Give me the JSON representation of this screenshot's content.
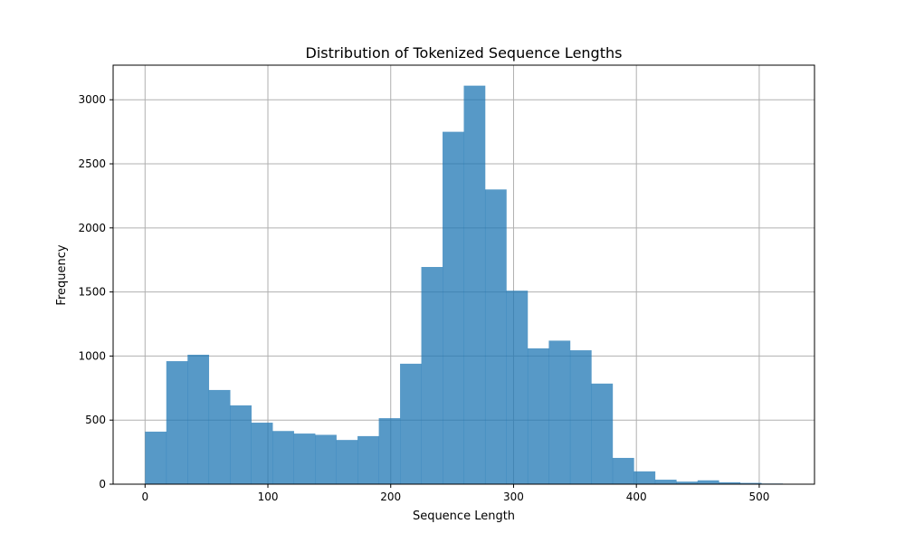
{
  "chart_data": {
    "type": "bar",
    "title": "Distribution of Tokenized Sequence Lengths",
    "xlabel": "Sequence Length",
    "ylabel": "Frequency",
    "xlim": [
      -26,
      545
    ],
    "ylim": [
      0,
      3270
    ],
    "xticks": [
      0,
      100,
      200,
      300,
      400,
      500
    ],
    "yticks": [
      0,
      500,
      1000,
      1500,
      2000,
      2500,
      3000
    ],
    "grid": true,
    "bar_color": "#1f77b4",
    "bin_edges": [
      0,
      17.3,
      34.6,
      51.9,
      69.2,
      86.5,
      103.8,
      121.1,
      138.4,
      155.7,
      173,
      190.3,
      207.6,
      224.9,
      242.2,
      259.5,
      276.8,
      294.1,
      311.4,
      328.7,
      346,
      363.3,
      380.6,
      397.9,
      415.2,
      432.5,
      449.8,
      467.1,
      484.4,
      501.7,
      519
    ],
    "values": [
      410,
      960,
      1010,
      735,
      615,
      480,
      415,
      395,
      385,
      345,
      375,
      515,
      940,
      1695,
      2750,
      3110,
      2300,
      1510,
      1060,
      1120,
      1045,
      785,
      205,
      100,
      35,
      20,
      30,
      15,
      10,
      5
    ]
  }
}
